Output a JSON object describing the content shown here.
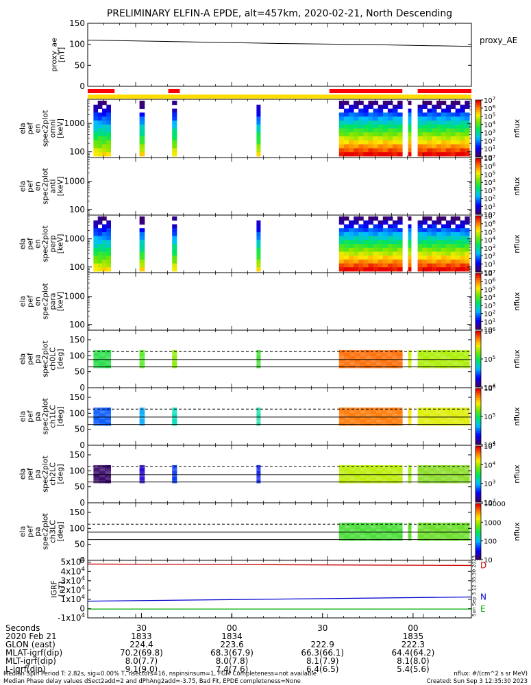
{
  "title": "PRELIMINARY ELFIN-A EPDE, alt=457km, 2020-02-21, North Descending",
  "colors": {
    "axis": "#000000",
    "ae_line": "#000000",
    "bar_red": "#ff0000",
    "bar_yellow": "#ffdd00",
    "grf_D": "#cc0000",
    "grf_N": "#0000cc",
    "grf_E": "#00aa00"
  },
  "chart_data": [
    {
      "type": "line",
      "id": "proxy_ae",
      "ylabel": [
        "proxy_ae",
        "[nT]"
      ],
      "legend": "proxy_AE",
      "ylim": [
        0,
        150
      ],
      "yticks": [
        "0",
        "50",
        "100",
        "150"
      ],
      "x": [
        0,
        0.25,
        0.5,
        0.75,
        1.0
      ],
      "values": [
        110,
        106,
        102,
        99,
        95
      ]
    },
    {
      "type": "bar",
      "id": "sector-bars",
      "red_segments": [
        [
          0.0,
          0.07
        ],
        [
          0.21,
          0.24
        ],
        [
          0.63,
          0.82
        ],
        [
          0.86,
          1.0
        ]
      ],
      "yellow_segments": [
        [
          0.0,
          1.0
        ]
      ]
    },
    {
      "type": "heatmap",
      "id": "omni",
      "ylabel": [
        "ela",
        "pef",
        "en",
        "spec2plot",
        "omni",
        "[keV]"
      ],
      "yticks": [
        "100",
        "1000"
      ],
      "colorbar_ticks": [
        "10",
        "10^1",
        "10^2",
        "10^3",
        "10^4",
        "10^5",
        "10^6",
        "10^7"
      ],
      "zlabel": "nflux",
      "segments": [
        [
          0.015,
          0.06
        ],
        [
          0.135,
          0.148
        ],
        [
          0.22,
          0.232
        ],
        [
          0.44,
          0.45
        ],
        [
          0.655,
          0.82
        ],
        [
          0.835,
          0.843
        ],
        [
          0.86,
          0.995
        ]
      ]
    },
    {
      "type": "heatmap",
      "id": "anti",
      "ylabel": [
        "ela",
        "pef",
        "en",
        "spec2plot",
        "anti",
        "[keV]"
      ],
      "yticks": [
        "100",
        "1000"
      ],
      "colorbar_ticks": [
        "10",
        "10^1",
        "10^2",
        "10^3",
        "10^4",
        "10^5",
        "10^6",
        "10^7"
      ],
      "zlabel": "nflux",
      "segments": []
    },
    {
      "type": "heatmap",
      "id": "perp",
      "ylabel": [
        "ela",
        "pef",
        "en",
        "spec2plot",
        "perp",
        "[keV]"
      ],
      "yticks": [
        "100",
        "1000"
      ],
      "colorbar_ticks": [
        "10",
        "10^1",
        "10^2",
        "10^3",
        "10^4",
        "10^5",
        "10^6",
        "10^7"
      ],
      "zlabel": "nflux",
      "segments": [
        [
          0.015,
          0.06
        ],
        [
          0.135,
          0.148
        ],
        [
          0.22,
          0.232
        ],
        [
          0.44,
          0.45
        ],
        [
          0.655,
          0.82
        ],
        [
          0.835,
          0.843
        ],
        [
          0.86,
          0.995
        ]
      ]
    },
    {
      "type": "heatmap",
      "id": "para",
      "ylabel": [
        "ela",
        "pef",
        "en",
        "spec2plot",
        "para",
        "[keV]"
      ],
      "yticks": [
        "100",
        "1000"
      ],
      "colorbar_ticks": [
        "10",
        "10^1",
        "10^2",
        "10^3",
        "10^4",
        "10^5",
        "10^6",
        "10^7"
      ],
      "zlabel": "nflux",
      "segments": []
    },
    {
      "type": "heatmap",
      "id": "ch0LC",
      "ylabel": [
        "ela",
        "pef",
        "pa",
        "spec2plot",
        "ch0LC",
        "[deg]"
      ],
      "ylim": [
        0,
        180
      ],
      "yticks": [
        "0",
        "50",
        "100",
        "150"
      ],
      "colorbar_ticks": [
        "10^4",
        "10^5",
        "10^6"
      ],
      "zlabel": "nflux",
      "lines": [
        65,
        88
      ],
      "dashed": 113,
      "segments": [
        [
          0.015,
          0.06
        ],
        [
          0.135,
          0.148
        ],
        [
          0.22,
          0.232
        ],
        [
          0.44,
          0.45
        ],
        [
          0.655,
          0.82
        ],
        [
          0.835,
          0.843
        ],
        [
          0.86,
          0.995
        ]
      ],
      "seg_colors": [
        "#22dd44",
        "#55ee22",
        "#88ee00",
        "#44dd33",
        "#ff6a00",
        "#ccee00",
        "#aaee00"
      ]
    },
    {
      "type": "heatmap",
      "id": "ch1LC",
      "ylabel": [
        "ela",
        "pef",
        "pa",
        "spec2plot",
        "ch1LC",
        "[deg]"
      ],
      "ylim": [
        0,
        180
      ],
      "yticks": [
        "0",
        "50",
        "100",
        "150"
      ],
      "colorbar_ticks": [
        "10^4",
        "10^5",
        "10^6"
      ],
      "zlabel": "nflux",
      "lines": [
        65,
        88
      ],
      "dashed": 113,
      "segments": [
        [
          0.015,
          0.06
        ],
        [
          0.135,
          0.148
        ],
        [
          0.22,
          0.232
        ],
        [
          0.44,
          0.45
        ],
        [
          0.655,
          0.82
        ],
        [
          0.835,
          0.843
        ],
        [
          0.86,
          0.995
        ]
      ],
      "seg_colors": [
        "#0055ff",
        "#00aaff",
        "#00ddbb",
        "#22ddaa",
        "#ff7700",
        "#ffdd00",
        "#ddee00"
      ]
    },
    {
      "type": "heatmap",
      "id": "ch2LC",
      "ylabel": [
        "ela",
        "pef",
        "pa",
        "spec2plot",
        "ch2LC",
        "[deg]"
      ],
      "ylim": [
        0,
        180
      ],
      "yticks": [
        "0",
        "50",
        "100",
        "150"
      ],
      "colorbar_ticks": [
        "10^2",
        "10^3",
        "10^4",
        "10^5"
      ],
      "zlabel": "nflux",
      "lines": [
        65,
        88
      ],
      "dashed": 113,
      "segments": [
        [
          0.015,
          0.06
        ],
        [
          0.135,
          0.148
        ],
        [
          0.22,
          0.232
        ],
        [
          0.44,
          0.45
        ],
        [
          0.655,
          0.82
        ],
        [
          0.835,
          0.843
        ],
        [
          0.86,
          0.995
        ]
      ],
      "seg_colors": [
        "#330066",
        "#2200cc",
        "#0033ee",
        "#1122ee",
        "#bbee00",
        "#99ee00",
        "#88dd22"
      ]
    },
    {
      "type": "heatmap",
      "id": "ch3LC",
      "ylabel": [
        "ela",
        "pef",
        "pa",
        "spec2plot",
        "ch3LC",
        "[deg]"
      ],
      "ylim": [
        0,
        180
      ],
      "yticks": [
        "0",
        "50",
        "100",
        "150"
      ],
      "colorbar_ticks": [
        "10",
        "100",
        "1000",
        "10000"
      ],
      "zlabel": "nflux",
      "lines": [
        65,
        88
      ],
      "dashed": 113,
      "segments": [
        [
          0.655,
          0.82
        ],
        [
          0.835,
          0.843
        ],
        [
          0.86,
          0.995
        ]
      ],
      "seg_colors": [
        "#44dd33",
        "#55dd22",
        "#66dd22"
      ]
    },
    {
      "type": "line",
      "id": "igrf",
      "ylabel": [
        "IGRF",
        "[nT]"
      ],
      "ylim": [
        -10000,
        52000
      ],
      "yticks": [
        "-1x10^4",
        "0",
        "1x10^4",
        "2x10^4",
        "3x10^4",
        "4x10^4",
        "5x10^4"
      ],
      "x": [
        0,
        1
      ],
      "series": [
        {
          "name": "D",
          "values": [
            48000,
            46500
          ]
        },
        {
          "name": "N",
          "values": [
            8000,
            12500
          ]
        },
        {
          "name": "E",
          "values": [
            -500,
            -500
          ]
        }
      ]
    }
  ],
  "timestamp_vertical": "Sun Sep  3 12:35:30 2023",
  "xaxis": {
    "tick_labels": [
      {
        "pos": 0.14,
        "secs": "30",
        "date": "1833",
        "glon": "224.4",
        "mlat": "70.2(69.8)",
        "mlt": "8.0(7.7)",
        "l": "9.1(9.0)"
      },
      {
        "pos": 0.376,
        "secs": "00",
        "date": "1834",
        "glon": "223.6",
        "mlat": "68.3(67.9)",
        "mlt": "8.0(7.8)",
        "l": "7.4(7.6)"
      },
      {
        "pos": 0.612,
        "secs": "30",
        "date": "",
        "glon": "222.9",
        "mlat": "66.3(66.1)",
        "mlt": "8.1(7.9)",
        "l": "6.4(6.5)"
      },
      {
        "pos": 0.848,
        "secs": "00",
        "date": "1835",
        "glon": "222.3",
        "mlat": "64.4(64.2)",
        "mlt": "8.1(8.0)",
        "l": "5.4(5.6)"
      }
    ],
    "row_labels": [
      "Seconds",
      "2020 Feb 21",
      "GLON (east)",
      "MLAT-igrf(dip)",
      "MLT-igrf(dip)",
      "L-igrf(dip)"
    ]
  },
  "footer": {
    "line1_left": "Median Spin Period T: 2.82s, sig=0.00% T, nsectors=16, nspinsinsum=1, FGM Completeness=not available",
    "line1_right": "nflux: #/(cm^2 s sr MeV)",
    "line2_left": "Median Phase delay values dSect2add=2 and dPhAng2add=-3.75, Bad Fit, EPDE completeness=None",
    "line2_right": "Created: Sun Sep  3 12:35:30 2023"
  }
}
